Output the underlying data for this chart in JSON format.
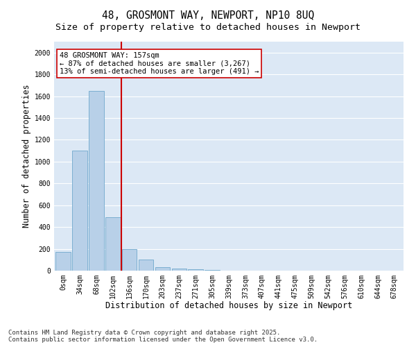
{
  "title_line1": "48, GROSMONT WAY, NEWPORT, NP10 8UQ",
  "title_line2": "Size of property relative to detached houses in Newport",
  "xlabel": "Distribution of detached houses by size in Newport",
  "ylabel": "Number of detached properties",
  "bar_labels": [
    "0sqm",
    "34sqm",
    "68sqm",
    "102sqm",
    "136sqm",
    "170sqm",
    "203sqm",
    "237sqm",
    "271sqm",
    "305sqm",
    "339sqm",
    "373sqm",
    "407sqm",
    "441sqm",
    "475sqm",
    "509sqm",
    "542sqm",
    "576sqm",
    "610sqm",
    "644sqm",
    "678sqm"
  ],
  "bar_values": [
    175,
    1100,
    1650,
    490,
    200,
    105,
    35,
    22,
    15,
    5,
    0,
    0,
    0,
    0,
    0,
    0,
    0,
    0,
    0,
    0,
    0
  ],
  "bar_color": "#b8d0e8",
  "bar_edge_color": "#6fa8cc",
  "vline_color": "#cc0000",
  "annotation_text": "48 GROSMONT WAY: 157sqm\n← 87% of detached houses are smaller (3,267)\n13% of semi-detached houses are larger (491) →",
  "annotation_box_facecolor": "#ffffff",
  "annotation_box_edgecolor": "#cc0000",
  "ylim": [
    0,
    2100
  ],
  "yticks": [
    0,
    200,
    400,
    600,
    800,
    1000,
    1200,
    1400,
    1600,
    1800,
    2000
  ],
  "fig_background": "#ffffff",
  "axes_background": "#dce8f5",
  "grid_color": "#ffffff",
  "footer_line1": "Contains HM Land Registry data © Crown copyright and database right 2025.",
  "footer_line2": "Contains public sector information licensed under the Open Government Licence v3.0.",
  "title_fontsize": 10.5,
  "subtitle_fontsize": 9.5,
  "axis_label_fontsize": 8.5,
  "tick_fontsize": 7,
  "annotation_fontsize": 7.5,
  "footer_fontsize": 6.5
}
